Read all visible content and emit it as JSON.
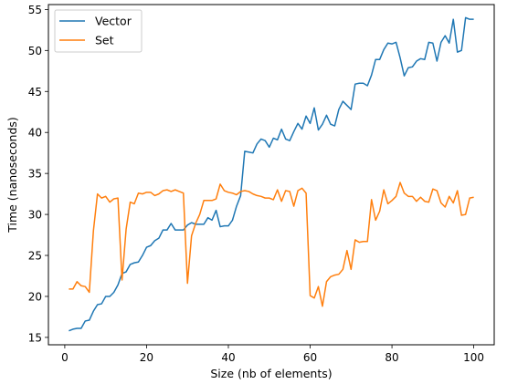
{
  "chart_data": {
    "type": "line",
    "xlabel": "Size (nb of elements)",
    "ylabel": "Time (nanoseconds)",
    "xlim": [
      -4,
      105
    ],
    "ylim": [
      14.1,
      55.6
    ],
    "x_ticks": [
      0,
      20,
      40,
      60,
      80,
      100
    ],
    "y_ticks": [
      15,
      20,
      25,
      30,
      35,
      40,
      45,
      50,
      55
    ],
    "grid": false,
    "legend_position": "top-left",
    "x": [
      1,
      2,
      3,
      4,
      5,
      6,
      7,
      8,
      9,
      10,
      11,
      12,
      13,
      14,
      15,
      16,
      17,
      18,
      19,
      20,
      21,
      22,
      23,
      24,
      25,
      26,
      27,
      28,
      29,
      30,
      31,
      32,
      33,
      34,
      35,
      36,
      37,
      38,
      39,
      40,
      41,
      42,
      43,
      44,
      45,
      46,
      47,
      48,
      49,
      50,
      51,
      52,
      53,
      54,
      55,
      56,
      57,
      58,
      59,
      60,
      61,
      62,
      63,
      64,
      65,
      66,
      67,
      68,
      69,
      70,
      71,
      72,
      73,
      74,
      75,
      76,
      77,
      78,
      79,
      80,
      81,
      82,
      83,
      84,
      85,
      86,
      87,
      88,
      89,
      90,
      91,
      92,
      93,
      94,
      95,
      96,
      97,
      98,
      99,
      100
    ],
    "series": [
      {
        "name": "Vector",
        "color": "#1f77b4",
        "values": [
          15.8,
          16.0,
          16.1,
          16.1,
          17.0,
          17.1,
          18.2,
          19.0,
          19.1,
          20.0,
          20.0,
          20.5,
          21.4,
          22.8,
          23.0,
          23.9,
          24.1,
          24.2,
          25.0,
          26.0,
          26.2,
          26.8,
          27.1,
          28.1,
          28.1,
          28.9,
          28.1,
          28.1,
          28.1,
          28.7,
          29.0,
          28.8,
          28.8,
          28.8,
          29.6,
          29.3,
          30.5,
          28.5,
          28.6,
          28.6,
          29.3,
          31.0,
          32.3,
          37.7,
          37.6,
          37.5,
          38.6,
          39.2,
          39.0,
          38.2,
          39.3,
          39.1,
          40.4,
          39.2,
          39.0,
          40.1,
          41.1,
          40.4,
          42.0,
          41.1,
          43.0,
          40.3,
          41.0,
          42.1,
          41.0,
          40.8,
          42.8,
          43.8,
          43.3,
          42.8,
          45.9,
          46.0,
          46.0,
          45.7,
          47.0,
          48.9,
          48.9,
          50.1,
          50.9,
          50.8,
          51.0,
          49.1,
          46.9,
          47.9,
          48.0,
          48.7,
          49.0,
          48.9,
          51.0,
          50.9,
          48.7,
          51.0,
          51.8,
          50.9,
          53.8,
          49.8,
          50.0,
          54.0,
          53.8,
          53.8
        ]
      },
      {
        "name": "Set",
        "color": "#ff7f0e",
        "values": [
          20.9,
          20.9,
          21.8,
          21.3,
          21.2,
          20.5,
          28.0,
          32.5,
          32.0,
          32.2,
          31.5,
          31.9,
          32.0,
          22.0,
          28.2,
          31.5,
          31.3,
          32.6,
          32.5,
          32.7,
          32.7,
          32.3,
          32.5,
          32.9,
          33.0,
          32.8,
          33.0,
          32.8,
          32.6,
          21.6,
          27.4,
          28.9,
          30.0,
          31.7,
          31.7,
          31.7,
          31.9,
          33.7,
          32.9,
          32.7,
          32.6,
          32.4,
          32.8,
          32.9,
          32.8,
          32.5,
          32.3,
          32.2,
          32.0,
          32.0,
          31.8,
          33.0,
          31.6,
          32.9,
          32.8,
          31.0,
          32.9,
          33.2,
          32.6,
          20.1,
          19.8,
          21.2,
          18.8,
          21.8,
          22.4,
          22.6,
          22.7,
          23.3,
          25.6,
          23.3,
          26.9,
          26.6,
          26.7,
          26.7,
          31.8,
          29.3,
          30.4,
          33.0,
          31.3,
          31.7,
          32.2,
          33.9,
          32.6,
          32.2,
          32.2,
          31.6,
          32.1,
          31.6,
          31.5,
          33.1,
          32.9,
          31.4,
          30.9,
          32.2,
          31.4,
          32.9,
          29.9,
          30.0,
          32.0,
          32.1
        ]
      }
    ]
  }
}
